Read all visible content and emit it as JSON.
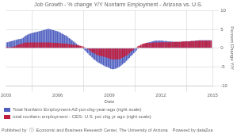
{
  "chart_data": {
    "type": "bar",
    "title": "Job Growth - % change Y/Y Nonfarm Employment - Arizona vs. U.S.",
    "xlabel": "Date",
    "ylabel": "Percent Change Y/Y",
    "annotations": [
      "Published by  ⓘ  Economic and Business Research Center, The University of Arizona    Powered by dataZoa"
    ],
    "x": [
      2003.0,
      2003.083,
      2003.167,
      2003.25,
      2003.333,
      2003.417,
      2003.5,
      2003.583,
      2003.667,
      2003.75,
      2003.833,
      2003.917,
      2004.0,
      2004.083,
      2004.167,
      2004.25,
      2004.333,
      2004.417,
      2004.5,
      2004.583,
      2004.667,
      2004.75,
      2004.833,
      2004.917,
      2005.0,
      2005.083,
      2005.167,
      2005.25,
      2005.333,
      2005.417,
      2005.5,
      2005.583,
      2005.667,
      2005.75,
      2005.833,
      2005.917,
      2006.0,
      2006.083,
      2006.167,
      2006.25,
      2006.333,
      2006.417,
      2006.5,
      2006.583,
      2006.667,
      2006.75,
      2006.833,
      2006.917,
      2007.0,
      2007.083,
      2007.167,
      2007.25,
      2007.333,
      2007.417,
      2007.5,
      2007.583,
      2007.667,
      2007.75,
      2007.833,
      2007.917,
      2008.0,
      2008.083,
      2008.167,
      2008.25,
      2008.333,
      2008.417,
      2008.5,
      2008.583,
      2008.667,
      2008.75,
      2008.833,
      2008.917,
      2009.0,
      2009.083,
      2009.167,
      2009.25,
      2009.333,
      2009.417,
      2009.5,
      2009.583,
      2009.667,
      2009.75,
      2009.833,
      2009.917,
      2010.0,
      2010.083,
      2010.167,
      2010.25,
      2010.333,
      2010.417,
      2010.5,
      2010.583,
      2010.667,
      2010.75,
      2010.833,
      2010.917,
      2011.0,
      2011.083,
      2011.167,
      2011.25,
      2011.333,
      2011.417,
      2011.5,
      2011.583,
      2011.667,
      2011.75,
      2011.833,
      2011.917,
      2012.0,
      2012.083,
      2012.167,
      2012.25,
      2012.333,
      2012.417,
      2012.5,
      2012.583,
      2012.667,
      2012.75,
      2012.833,
      2012.917,
      2013.0,
      2013.083,
      2013.167,
      2013.25,
      2013.333,
      2013.417,
      2013.5,
      2013.583,
      2013.667,
      2013.75,
      2013.833,
      2013.917,
      2014.0,
      2014.083,
      2014.167,
      2014.25,
      2014.333,
      2014.417,
      2014.5,
      2014.583,
      2014.667,
      2014.75,
      2014.833,
      2014.917
    ],
    "series": [
      {
        "name": "Total Nonfarm Employment-AZ-pct-chg-year-ago (right scale)",
        "color": "#5060c0",
        "values": [
          1.5,
          1.6,
          1.7,
          1.8,
          1.9,
          2.0,
          2.1,
          2.2,
          2.3,
          2.4,
          2.5,
          2.6,
          2.8,
          3.1,
          3.4,
          3.6,
          3.8,
          3.9,
          4.0,
          4.1,
          4.2,
          4.3,
          4.4,
          4.5,
          4.6,
          4.7,
          4.8,
          4.9,
          5.0,
          5.1,
          5.1,
          5.0,
          4.9,
          4.8,
          4.7,
          4.6,
          4.5,
          4.3,
          4.1,
          3.9,
          3.7,
          3.5,
          3.3,
          3.0,
          2.7,
          2.4,
          2.1,
          1.8,
          1.5,
          1.2,
          0.9,
          0.6,
          0.3,
          0.0,
          -0.3,
          -0.6,
          -1.0,
          -1.4,
          -1.8,
          -2.1,
          -2.5,
          -2.9,
          -3.2,
          -3.5,
          -3.8,
          -4.0,
          -4.2,
          -4.4,
          -4.6,
          -4.8,
          -5.0,
          -5.1,
          -5.3,
          -5.5,
          -5.6,
          -5.6,
          -5.5,
          -5.4,
          -5.2,
          -5.0,
          -4.7,
          -4.4,
          -4.1,
          -3.8,
          -3.4,
          -3.0,
          -2.6,
          -2.2,
          -1.8,
          -1.4,
          -1.0,
          -0.6,
          -0.2,
          0.1,
          0.4,
          0.7,
          1.0,
          1.2,
          1.4,
          1.5,
          1.6,
          1.7,
          1.8,
          1.9,
          2.0,
          2.0,
          2.0,
          2.0,
          2.0,
          2.0,
          1.9,
          1.9,
          1.9,
          1.8,
          1.8,
          1.8,
          1.7,
          1.7,
          1.7,
          1.7,
          1.7,
          1.7,
          1.7,
          1.7,
          1.7,
          1.8,
          1.8,
          1.8,
          1.8,
          1.9,
          1.9,
          1.9,
          2.0,
          2.0,
          2.0,
          2.1,
          2.1,
          2.1,
          2.1,
          2.1,
          2.1,
          2.1,
          2.1,
          2.1
        ]
      },
      {
        "name": "total nonfarm employment - CES- U.S. pct chg yr ago (right scale)",
        "color": "#c02040",
        "values": [
          0.3,
          0.3,
          0.2,
          0.2,
          0.3,
          0.4,
          0.5,
          0.6,
          0.8,
          1.0,
          1.1,
          1.2,
          1.3,
          1.4,
          1.5,
          1.5,
          1.5,
          1.5,
          1.5,
          1.5,
          1.5,
          1.5,
          1.5,
          1.5,
          1.5,
          1.5,
          1.5,
          1.5,
          1.5,
          1.5,
          1.5,
          1.5,
          1.4,
          1.4,
          1.4,
          1.4,
          1.4,
          1.3,
          1.3,
          1.3,
          1.2,
          1.2,
          1.2,
          1.1,
          1.1,
          1.0,
          1.0,
          0.9,
          0.9,
          0.8,
          0.8,
          0.7,
          0.6,
          0.5,
          0.4,
          0.2,
          0.0,
          -0.3,
          -0.5,
          -0.8,
          -1.1,
          -1.3,
          -1.5,
          -1.7,
          -1.9,
          -2.0,
          -2.1,
          -2.2,
          -2.3,
          -2.4,
          -2.5,
          -2.6,
          -2.8,
          -2.9,
          -3.0,
          -3.0,
          -3.0,
          -3.0,
          -3.0,
          -2.9,
          -2.8,
          -2.6,
          -2.4,
          -2.2,
          -2.0,
          -1.7,
          -1.4,
          -1.0,
          -0.7,
          -0.4,
          -0.1,
          0.2,
          0.5,
          0.7,
          0.9,
          1.1,
          1.2,
          1.3,
          1.4,
          1.4,
          1.4,
          1.4,
          1.4,
          1.5,
          1.5,
          1.5,
          1.5,
          1.5,
          1.6,
          1.6,
          1.6,
          1.6,
          1.6,
          1.6,
          1.6,
          1.6,
          1.7,
          1.7,
          1.7,
          1.7,
          1.7,
          1.7,
          1.7,
          1.8,
          1.8,
          1.8,
          1.8,
          1.8,
          1.8,
          1.9,
          1.9,
          1.9,
          1.9,
          2.0,
          2.0,
          2.0,
          2.0,
          2.0,
          2.0,
          2.0,
          2.0,
          2.0,
          2.0,
          2.0
        ]
      }
    ],
    "xlim": [
      2003,
      2015
    ],
    "xticks": [
      2003,
      2006,
      2009,
      2012,
      2015
    ],
    "ylim": [
      -10,
      10
    ],
    "yticks": [
      -10,
      -5,
      0,
      5,
      10
    ],
    "grid": true,
    "legend": "lower left"
  }
}
